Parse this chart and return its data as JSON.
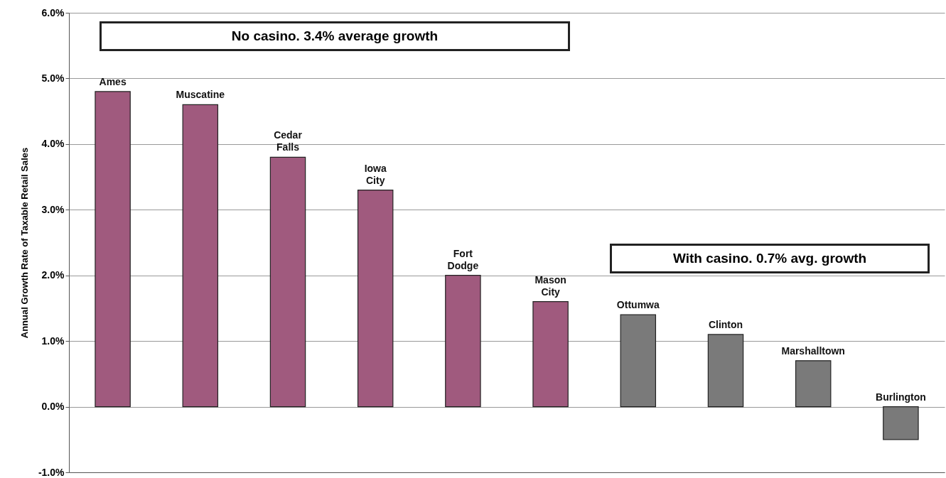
{
  "chart_data": {
    "type": "bar",
    "ylabel": "Annual Growth Rate of Taxable Retail Sales",
    "categories": [
      "Ames",
      "Muscatine",
      "Cedar Falls",
      "Iowa City",
      "Fort Dodge",
      "Mason City",
      "Ottumwa",
      "Clinton",
      "Marshalltown",
      "Burlington"
    ],
    "values": [
      4.8,
      4.6,
      3.8,
      3.3,
      2.0,
      1.6,
      1.4,
      1.1,
      0.7,
      -0.5
    ],
    "colors": [
      "#a05a7e",
      "#a05a7e",
      "#a05a7e",
      "#a05a7e",
      "#a05a7e",
      "#a05a7e",
      "#7a7a7a",
      "#7a7a7a",
      "#7a7a7a",
      "#7a7a7a"
    ],
    "ylim": [
      -1,
      6
    ],
    "yticks": [
      {
        "value": -1,
        "label": "-1.0%"
      },
      {
        "value": 0,
        "label": "0.0%"
      },
      {
        "value": 1,
        "label": "1.0%"
      },
      {
        "value": 2,
        "label": "2.0%"
      },
      {
        "value": 3,
        "label": "3.0%"
      },
      {
        "value": 4,
        "label": "4.0%"
      },
      {
        "value": 5,
        "label": "5.0%"
      },
      {
        "value": 6,
        "label": "6.0%"
      }
    ],
    "grid": "y",
    "annotations": [
      "No casino.  3.4% average growth",
      "With casino.  0.7% avg. growth"
    ]
  }
}
